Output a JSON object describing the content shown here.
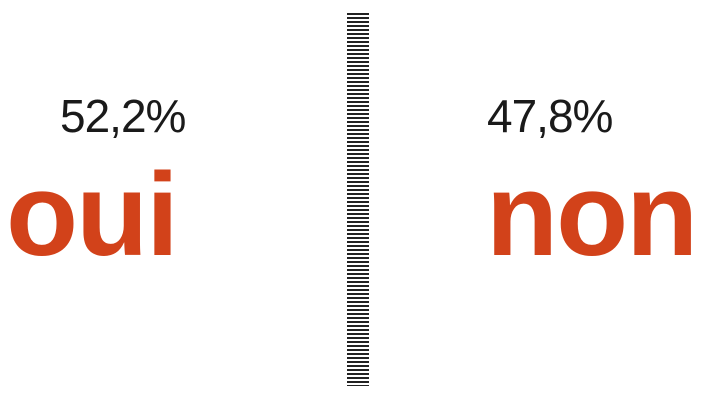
{
  "results": {
    "oui": {
      "percent_label": "52,2%",
      "answer": "oui"
    },
    "non": {
      "percent_label": "47,8%",
      "answer": "non"
    }
  },
  "colors": {
    "answer_color": "#d2421a",
    "percent_color": "#1a1a1a",
    "divider_color": "#222222"
  }
}
